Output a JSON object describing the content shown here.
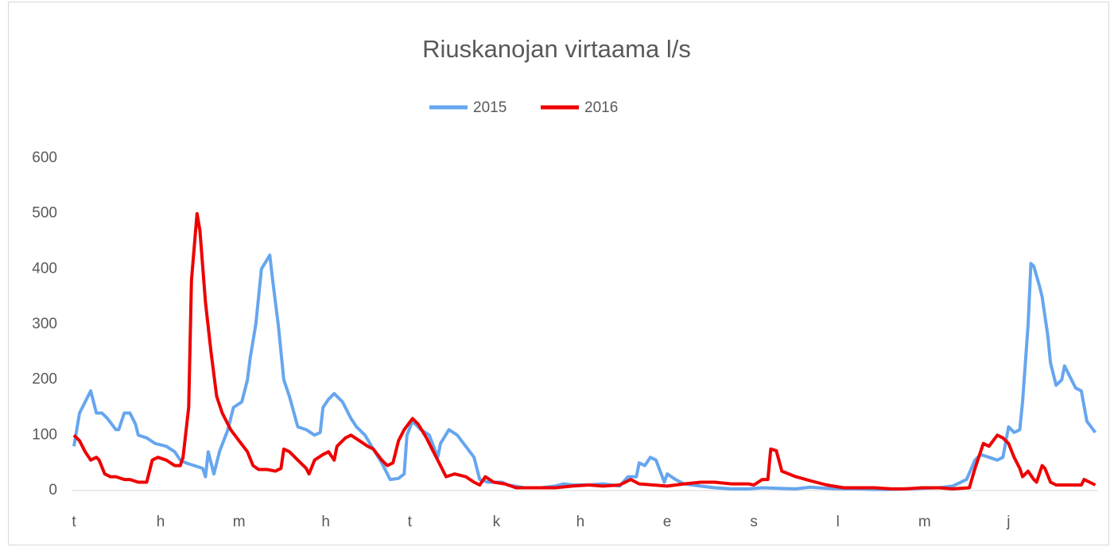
{
  "chart_data": {
    "type": "line",
    "title": "Riuskanojan virtaama l/s",
    "xlim": [
      0,
      366
    ],
    "xticks": [
      {
        "value": 0,
        "label": "t"
      },
      {
        "value": 31,
        "label": "h"
      },
      {
        "value": 59,
        "label": "m"
      },
      {
        "value": 90,
        "label": "h"
      },
      {
        "value": 120,
        "label": "t"
      },
      {
        "value": 151,
        "label": "k"
      },
      {
        "value": 181,
        "label": "h"
      },
      {
        "value": 212,
        "label": "e"
      },
      {
        "value": 243,
        "label": "s"
      },
      {
        "value": 273,
        "label": "l"
      },
      {
        "value": 304,
        "label": "m"
      },
      {
        "value": 334,
        "label": "j"
      }
    ],
    "ylim": [
      0,
      600
    ],
    "yticks": [
      0,
      100,
      200,
      300,
      400,
      500,
      600
    ],
    "grid": false,
    "legend": "top",
    "series": [
      {
        "name": "2015",
        "color": "#66a6ef",
        "x": [
          0,
          2,
          4,
          6,
          8,
          10,
          12,
          15,
          16,
          18,
          20,
          22,
          23,
          26,
          29,
          33,
          36,
          38,
          40,
          43,
          46,
          47,
          48,
          50,
          52,
          55,
          57,
          60,
          62,
          63,
          65,
          67,
          70,
          71,
          73,
          75,
          77,
          80,
          83,
          86,
          88,
          89,
          91,
          93,
          96,
          99,
          101,
          104,
          107,
          110,
          113,
          116,
          118,
          119,
          121,
          124,
          127,
          130,
          131,
          134,
          137,
          140,
          143,
          145,
          148,
          153,
          155,
          161,
          167,
          172,
          175,
          178,
          184,
          189,
          195,
          198,
          201,
          202,
          204,
          206,
          208,
          211,
          212,
          215,
          218,
          224,
          229,
          235,
          241,
          246,
          252,
          258,
          263,
          269,
          275,
          280,
          286,
          292,
          297,
          303,
          309,
          314,
          319,
          322,
          324,
          327,
          330,
          332,
          334,
          336,
          338,
          339,
          341,
          342,
          343,
          345,
          346,
          348,
          349,
          351,
          353,
          354,
          356,
          358,
          360,
          362,
          365
        ],
        "values": [
          80,
          140,
          160,
          180,
          140,
          140,
          130,
          110,
          110,
          140,
          140,
          120,
          100,
          95,
          85,
          80,
          70,
          55,
          50,
          45,
          40,
          25,
          70,
          30,
          70,
          110,
          150,
          160,
          200,
          240,
          300,
          400,
          425,
          380,
          300,
          200,
          170,
          115,
          110,
          100,
          105,
          150,
          165,
          175,
          160,
          130,
          115,
          100,
          75,
          50,
          20,
          22,
          30,
          100,
          125,
          110,
          100,
          60,
          85,
          110,
          100,
          80,
          60,
          20,
          15,
          15,
          10,
          5,
          5,
          8,
          12,
          10,
          10,
          12,
          8,
          25,
          25,
          50,
          45,
          60,
          55,
          15,
          30,
          20,
          12,
          8,
          5,
          3,
          3,
          5,
          4,
          3,
          6,
          4,
          3,
          3,
          2,
          2,
          3,
          4,
          5,
          8,
          20,
          55,
          65,
          60,
          55,
          60,
          115,
          105,
          110,
          160,
          300,
          410,
          405,
          370,
          350,
          280,
          230,
          190,
          200,
          225,
          205,
          185,
          180,
          125,
          105
        ]
      },
      {
        "name": "2016",
        "color": "#ee0000",
        "x": [
          0,
          2,
          4,
          6,
          8,
          9,
          11,
          13,
          15,
          18,
          20,
          23,
          26,
          28,
          30,
          33,
          36,
          38,
          39,
          41,
          42,
          44,
          45,
          47,
          49,
          51,
          53,
          56,
          59,
          62,
          64,
          66,
          69,
          72,
          74,
          75,
          77,
          80,
          83,
          84,
          86,
          89,
          91,
          93,
          94,
          97,
          99,
          102,
          105,
          107,
          110,
          112,
          114,
          116,
          118,
          121,
          123,
          126,
          128,
          131,
          133,
          136,
          140,
          143,
          145,
          147,
          150,
          154,
          158,
          164,
          172,
          178,
          184,
          189,
          195,
          199,
          202,
          207,
          212,
          218,
          224,
          229,
          235,
          241,
          243,
          246,
          248,
          249,
          251,
          253,
          258,
          263,
          269,
          275,
          280,
          286,
          292,
          297,
          303,
          309,
          314,
          320,
          322,
          325,
          327,
          330,
          332,
          334,
          336,
          338,
          339,
          341,
          343,
          344,
          346,
          347,
          349,
          351,
          357,
          360,
          361,
          363,
          365
        ],
        "values": [
          100,
          90,
          70,
          55,
          60,
          55,
          30,
          25,
          25,
          20,
          20,
          15,
          15,
          55,
          60,
          55,
          45,
          45,
          60,
          150,
          380,
          500,
          470,
          340,
          250,
          170,
          140,
          110,
          90,
          70,
          45,
          38,
          38,
          35,
          40,
          75,
          70,
          55,
          40,
          30,
          55,
          65,
          70,
          55,
          80,
          95,
          100,
          90,
          80,
          75,
          55,
          45,
          50,
          90,
          110,
          130,
          120,
          95,
          75,
          45,
          25,
          30,
          25,
          15,
          10,
          25,
          15,
          12,
          5,
          5,
          5,
          8,
          10,
          8,
          10,
          20,
          12,
          10,
          8,
          12,
          15,
          15,
          12,
          12,
          10,
          20,
          20,
          75,
          72,
          35,
          25,
          18,
          10,
          5,
          5,
          5,
          3,
          3,
          5,
          5,
          3,
          5,
          40,
          85,
          80,
          100,
          95,
          85,
          60,
          40,
          25,
          35,
          20,
          15,
          45,
          40,
          15,
          10,
          10,
          10,
          20,
          15,
          10
        ]
      }
    ]
  }
}
